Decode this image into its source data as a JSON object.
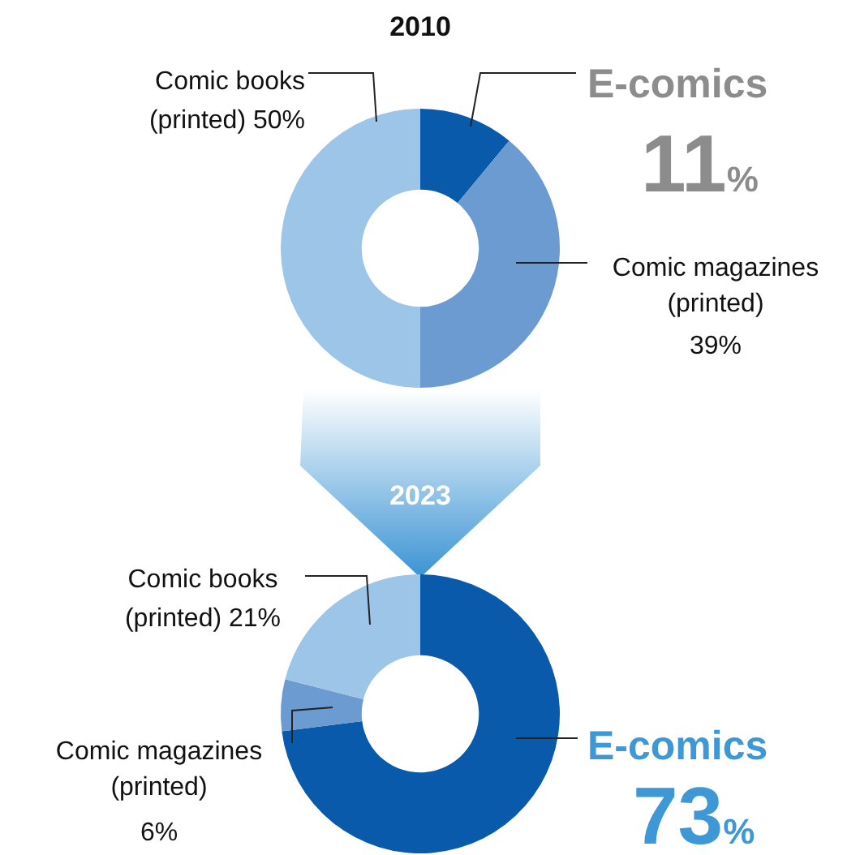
{
  "chart_data": [
    {
      "type": "donut",
      "title": "2010",
      "categories": [
        "E-comics",
        "Comic magazines (printed)",
        "Comic books (printed)"
      ],
      "values": [
        11,
        39,
        50
      ],
      "colors": [
        "#0a5aab",
        "#6b9bd0",
        "#9dc5e8"
      ],
      "value_labels": [
        "11%",
        "39%",
        "50%"
      ]
    },
    {
      "type": "donut",
      "title": "2023",
      "categories": [
        "E-comics",
        "Comic magazines (printed)",
        "Comic books (printed)"
      ],
      "values": [
        73,
        6,
        21
      ],
      "colors": [
        "#0a5aab",
        "#6b9bd0",
        "#9dc5e8"
      ],
      "value_labels": [
        "73%",
        "6%",
        "21%"
      ]
    }
  ]
}
